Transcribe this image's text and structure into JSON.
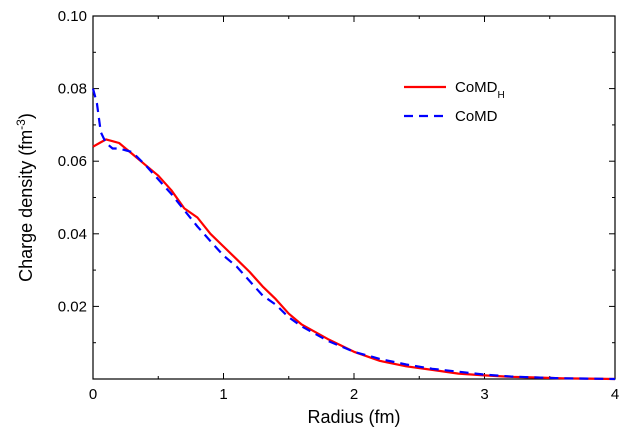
{
  "chart_data": {
    "type": "line",
    "title": "",
    "xlabel": "Radius (fm)",
    "ylabel": {
      "base": "Charge density (fm",
      "exp": "-3",
      "close": ")"
    },
    "xlim": [
      0,
      4
    ],
    "ylim": [
      0,
      0.1
    ],
    "xticks": [
      0,
      1,
      2,
      3,
      4
    ],
    "yticks": [
      0.02,
      0.04,
      0.06,
      0.08,
      0.1
    ],
    "x_tick_labels": [
      "0",
      "1",
      "2",
      "3",
      "4"
    ],
    "y_tick_labels": [
      "0.02",
      "0.04",
      "0.06",
      "0.08",
      "0.10"
    ],
    "grid": false,
    "legend_position": "top-right",
    "series": [
      {
        "name": "CoMD",
        "name_sub": "H",
        "color": "#ff0000",
        "dash": "solid",
        "x": [
          0,
          0.05,
          0.1,
          0.15,
          0.2,
          0.3,
          0.4,
          0.5,
          0.6,
          0.7,
          0.8,
          0.9,
          1.0,
          1.1,
          1.2,
          1.3,
          1.4,
          1.5,
          1.6,
          1.8,
          2.0,
          2.2,
          2.4,
          2.6,
          2.8,
          3.0,
          3.2,
          3.4,
          3.6,
          3.8,
          4.0
        ],
        "y": [
          0.064,
          0.065,
          0.066,
          0.0655,
          0.065,
          0.062,
          0.059,
          0.056,
          0.052,
          0.047,
          0.0445,
          0.04,
          0.0365,
          0.033,
          0.0295,
          0.0255,
          0.022,
          0.018,
          0.015,
          0.011,
          0.0075,
          0.005,
          0.0035,
          0.0025,
          0.0015,
          0.001,
          0.0006,
          0.0004,
          0.0002,
          0.0001,
          0.0
        ]
      },
      {
        "name": "CoMD",
        "color": "#0000ff",
        "dash": "dashed",
        "x": [
          0,
          0.03,
          0.06,
          0.1,
          0.15,
          0.2,
          0.3,
          0.4,
          0.5,
          0.6,
          0.7,
          0.8,
          0.9,
          1.0,
          1.1,
          1.2,
          1.3,
          1.4,
          1.5,
          1.6,
          1.8,
          2.0,
          2.2,
          2.4,
          2.6,
          2.8,
          3.0,
          3.2,
          3.4,
          3.6,
          3.8,
          4.0
        ],
        "y": [
          0.08,
          0.076,
          0.068,
          0.065,
          0.0635,
          0.0635,
          0.0625,
          0.059,
          0.055,
          0.051,
          0.0465,
          0.042,
          0.038,
          0.034,
          0.031,
          0.027,
          0.023,
          0.0205,
          0.017,
          0.0145,
          0.0105,
          0.0075,
          0.0055,
          0.004,
          0.0028,
          0.002,
          0.0012,
          0.0007,
          0.0004,
          0.0002,
          0.0001,
          0.0
        ]
      }
    ]
  }
}
